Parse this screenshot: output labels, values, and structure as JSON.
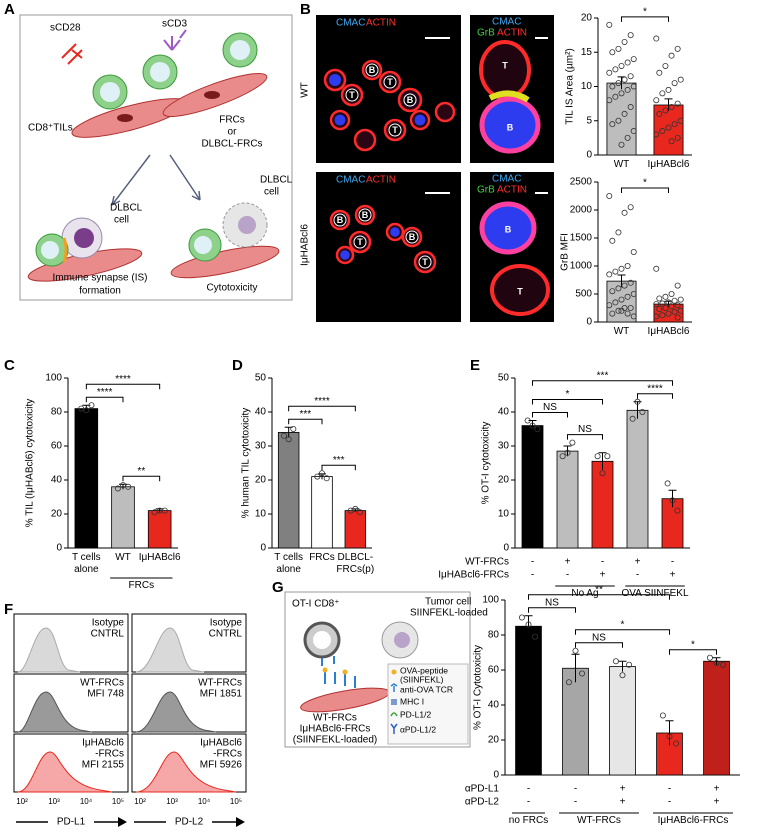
{
  "panel_letters": {
    "a": "A",
    "b": "B",
    "c": "C",
    "d": "D",
    "e": "E",
    "f": "F",
    "g": "G"
  },
  "panel_a": {
    "scd28": "sCD28",
    "scd3": "sCD3",
    "tils": "CD8⁺TILs",
    "frcs": [
      "FRCs",
      "or",
      "DLBCL-FRCs"
    ],
    "dlbcl_cell_1": [
      "DLBCL",
      "cell"
    ],
    "dlbcl_cell_2": [
      "DLBCL",
      "cell"
    ],
    "synapse": [
      "Immune synapse (IS)",
      "formation"
    ],
    "cytotoxicity": "Cytotoxicity"
  },
  "panel_b_images": {
    "row_labels": [
      "WT",
      "IμHABcl6"
    ],
    "stain_left": {
      "cmac": "CMAC",
      "actin": "ACTIN"
    },
    "stain_right": {
      "cmac": "CMAC",
      "grb": "GrB",
      "actin": "ACTIN"
    },
    "cell_labels": {
      "t": "T",
      "b": "B"
    }
  },
  "panel_f": {
    "panels": [
      {
        "axis_label": "PD-L1",
        "rows": [
          [
            "Isotype",
            "CNTRL"
          ],
          [
            "WT-FRCs",
            "MFI 748"
          ],
          [
            "IμHABcl6",
            "-FRCs",
            "MFI 2155"
          ]
        ]
      },
      {
        "axis_label": "PD-L2",
        "rows": [
          [
            "Isotype",
            "CNTRL"
          ],
          [
            "WT-FRCs",
            "MFI 1851"
          ],
          [
            "IμHABcl6",
            "-FRCs",
            "MFI 5926"
          ]
        ]
      }
    ],
    "xtick_labels": [
      "10²",
      "10³",
      "10⁴",
      "10⁵"
    ]
  },
  "panel_g_schematic": {
    "ot1": "OT-I CD8⁺",
    "tumor": [
      "Tumor cell",
      "SIINFEKL-loaded"
    ],
    "frcs": [
      "WT-FRCs",
      "IμHABcl6-FRCs",
      "(SIINFEKL-loaded)"
    ],
    "legend": [
      [
        "OVA-peptide",
        "(SIINFEKL)"
      ],
      [
        "anti-OVA TCR"
      ],
      [
        "MHC I"
      ],
      [
        "PD-L1/2"
      ],
      [
        "αPD-L1/2"
      ]
    ]
  },
  "chart_data": [
    {
      "type": "bar",
      "ylabel": "TIL IS Area (µm²)",
      "categories": [
        "WT",
        "IμHABcl6"
      ],
      "values": [
        10.5,
        7.3
      ],
      "errors": [
        0.9,
        0.9
      ],
      "colors": [
        "#bdbdbd",
        "#e8281e"
      ],
      "points": [
        [
          19,
          17.5,
          16.5,
          15.5,
          15,
          14,
          13.5,
          13,
          12.5,
          12,
          11.5,
          11,
          10.5,
          10,
          10,
          9.5,
          9,
          8.5,
          8,
          7,
          6,
          5,
          4.5,
          3.5,
          2.5,
          1.5
        ],
        [
          17,
          15.5,
          14.5,
          13,
          12,
          11,
          10.5,
          9.5,
          9,
          8,
          7.5,
          7,
          6.5,
          6,
          5,
          4.5,
          4,
          3.5,
          3,
          2.5,
          2
        ]
      ],
      "ylim": [
        0,
        20
      ],
      "yticks": [
        0,
        5,
        10,
        15,
        20
      ],
      "significance": [
        {
          "label": "*",
          "between": [
            0,
            1
          ]
        }
      ]
    },
    {
      "type": "bar",
      "ylabel": "GrB MFI",
      "categories": [
        "WT",
        "IμHABcl6"
      ],
      "values": [
        730,
        320
      ],
      "errors": [
        110,
        50
      ],
      "colors": [
        "#bdbdbd",
        "#e8281e"
      ],
      "points": [
        [
          2250,
          2050,
          1950,
          1600,
          1450,
          1250,
          1000,
          950,
          900,
          850,
          700,
          650,
          600,
          550,
          500,
          450,
          400,
          350,
          300,
          250,
          250,
          200,
          150,
          100,
          150,
          200
        ],
        [
          950,
          650,
          500,
          450,
          420,
          400,
          380,
          350,
          330,
          320,
          300,
          280,
          250,
          230,
          200,
          180,
          150,
          120,
          100,
          80
        ]
      ],
      "ylim": [
        0,
        2500
      ],
      "yticks": [
        0,
        500,
        1000,
        1500,
        2000,
        2500
      ],
      "significance": [
        {
          "label": "*",
          "between": [
            0,
            1
          ]
        }
      ]
    },
    {
      "type": "bar",
      "ylabel": "% TIL (IμHABcl6) cytotoxicity",
      "categories": [
        "T cells alone",
        "WT",
        "IμHABcl6"
      ],
      "values": [
        82,
        36,
        22
      ],
      "errors": [
        2,
        1.5,
        1
      ],
      "colors": [
        "#000000",
        "#bdbdbd",
        "#e8281e"
      ],
      "points": [
        [
          82,
          81,
          84
        ],
        [
          35,
          37,
          36
        ],
        [
          21,
          22,
          22
        ]
      ],
      "ylim": [
        0,
        100
      ],
      "yticks": [
        0,
        20,
        40,
        60,
        80,
        100
      ],
      "groups": [
        {
          "label": "FRCs",
          "between": [
            1,
            2
          ]
        }
      ],
      "significance": [
        {
          "label": "****",
          "between": [
            0,
            1
          ]
        },
        {
          "label": "**",
          "between": [
            1,
            2
          ]
        },
        {
          "label": "****",
          "between": [
            0,
            2
          ]
        }
      ]
    },
    {
      "type": "bar",
      "ylabel": "% human TIL cytotoxicity",
      "categories": [
        "T cells alone",
        "FRCs",
        "DLBCL-FRCs(p)"
      ],
      "values": [
        34,
        21,
        11
      ],
      "errors": [
        1.5,
        0.8,
        0.5
      ],
      "colors": [
        "#808080",
        "#ffffff",
        "#e8281e"
      ],
      "points": [
        [
          33,
          32,
          35
        ],
        [
          21,
          22,
          20.5
        ],
        [
          11,
          11.5,
          10.5
        ]
      ],
      "ylim": [
        0,
        50
      ],
      "yticks": [
        0,
        10,
        20,
        30,
        40,
        50
      ],
      "significance": [
        {
          "label": "***",
          "between": [
            0,
            1
          ]
        },
        {
          "label": "***",
          "between": [
            1,
            2
          ]
        },
        {
          "label": "****",
          "between": [
            0,
            2
          ]
        }
      ]
    },
    {
      "type": "bar",
      "ylabel": "% OT-I cytotoxicity",
      "categories": [
        null,
        null,
        null,
        null,
        null
      ],
      "values": [
        36,
        28.5,
        25.5,
        40.5,
        14.5
      ],
      "errors": [
        1.5,
        1.5,
        2.5,
        2.5,
        2.5
      ],
      "colors": [
        "#000000",
        "#bdbdbd",
        "#e8281e",
        "#bdbdbd",
        "#e8281e"
      ],
      "points": [
        [
          37.5,
          36,
          35
        ],
        [
          27,
          28,
          31
        ],
        [
          27,
          22,
          27
        ],
        [
          38,
          43,
          40
        ],
        [
          19,
          14,
          11
        ]
      ],
      "ylim": [
        0,
        50
      ],
      "yticks": [
        0,
        10,
        20,
        30,
        40,
        50
      ],
      "conditions": [
        {
          "label": "WT-FRCs",
          "marks": [
            "-",
            "+",
            "-",
            "+",
            "-"
          ]
        },
        {
          "label": "IμHABcl6-FRCs",
          "marks": [
            "-",
            "-",
            "+",
            "-",
            "+"
          ]
        }
      ],
      "groups": [
        {
          "label": "No Ag",
          "between": [
            1,
            2
          ]
        },
        {
          "label": "OVA SIINFEKL",
          "between": [
            3,
            4
          ]
        }
      ],
      "significance": [
        {
          "label": "NS",
          "between": [
            0,
            1
          ]
        },
        {
          "label": "NS",
          "between": [
            1,
            2
          ]
        },
        {
          "label": "*",
          "between": [
            0,
            2
          ]
        },
        {
          "label": "****",
          "between": [
            3,
            4
          ]
        },
        {
          "label": "***",
          "between": [
            0,
            4
          ]
        }
      ]
    },
    {
      "type": "bar",
      "ylabel": "% OT-I Cytotoxicity",
      "categories": [
        null,
        null,
        null,
        null,
        null
      ],
      "values": [
        85,
        61,
        62,
        24,
        65
      ],
      "errors": [
        6,
        8,
        3,
        7,
        2
      ],
      "colors": [
        "#000000",
        "#a6a6a6",
        "#e6e6e6",
        "#e8281e",
        "#c0201a"
      ],
      "points": [
        [
          90,
          86,
          79
        ],
        [
          53,
          71,
          58
        ],
        [
          65,
          57,
          63
        ],
        [
          34,
          22,
          18
        ],
        [
          67,
          64,
          63
        ]
      ],
      "ylim": [
        0,
        100
      ],
      "yticks": [
        0,
        20,
        40,
        60,
        80,
        100
      ],
      "conditions": [
        {
          "label": "αPD-L1",
          "marks": [
            "-",
            "-",
            "+",
            "-",
            "+"
          ]
        },
        {
          "label": "αPD-L2",
          "marks": [
            "-",
            "-",
            "+",
            "-",
            "+"
          ]
        }
      ],
      "groups": [
        {
          "label": "no FRCs",
          "between": [
            0,
            0
          ]
        },
        {
          "label": "WT-FRCs",
          "between": [
            1,
            2
          ]
        },
        {
          "label": "IμHABcl6-FRCs",
          "between": [
            3,
            4
          ]
        }
      ],
      "significance": [
        {
          "label": "*",
          "between": [
            3,
            4
          ]
        },
        {
          "label": "NS",
          "between": [
            0,
            1
          ]
        },
        {
          "label": "NS",
          "between": [
            1,
            2
          ]
        },
        {
          "label": "*",
          "between": [
            1,
            3
          ]
        },
        {
          "label": "**",
          "between": [
            0,
            3
          ]
        }
      ]
    }
  ]
}
